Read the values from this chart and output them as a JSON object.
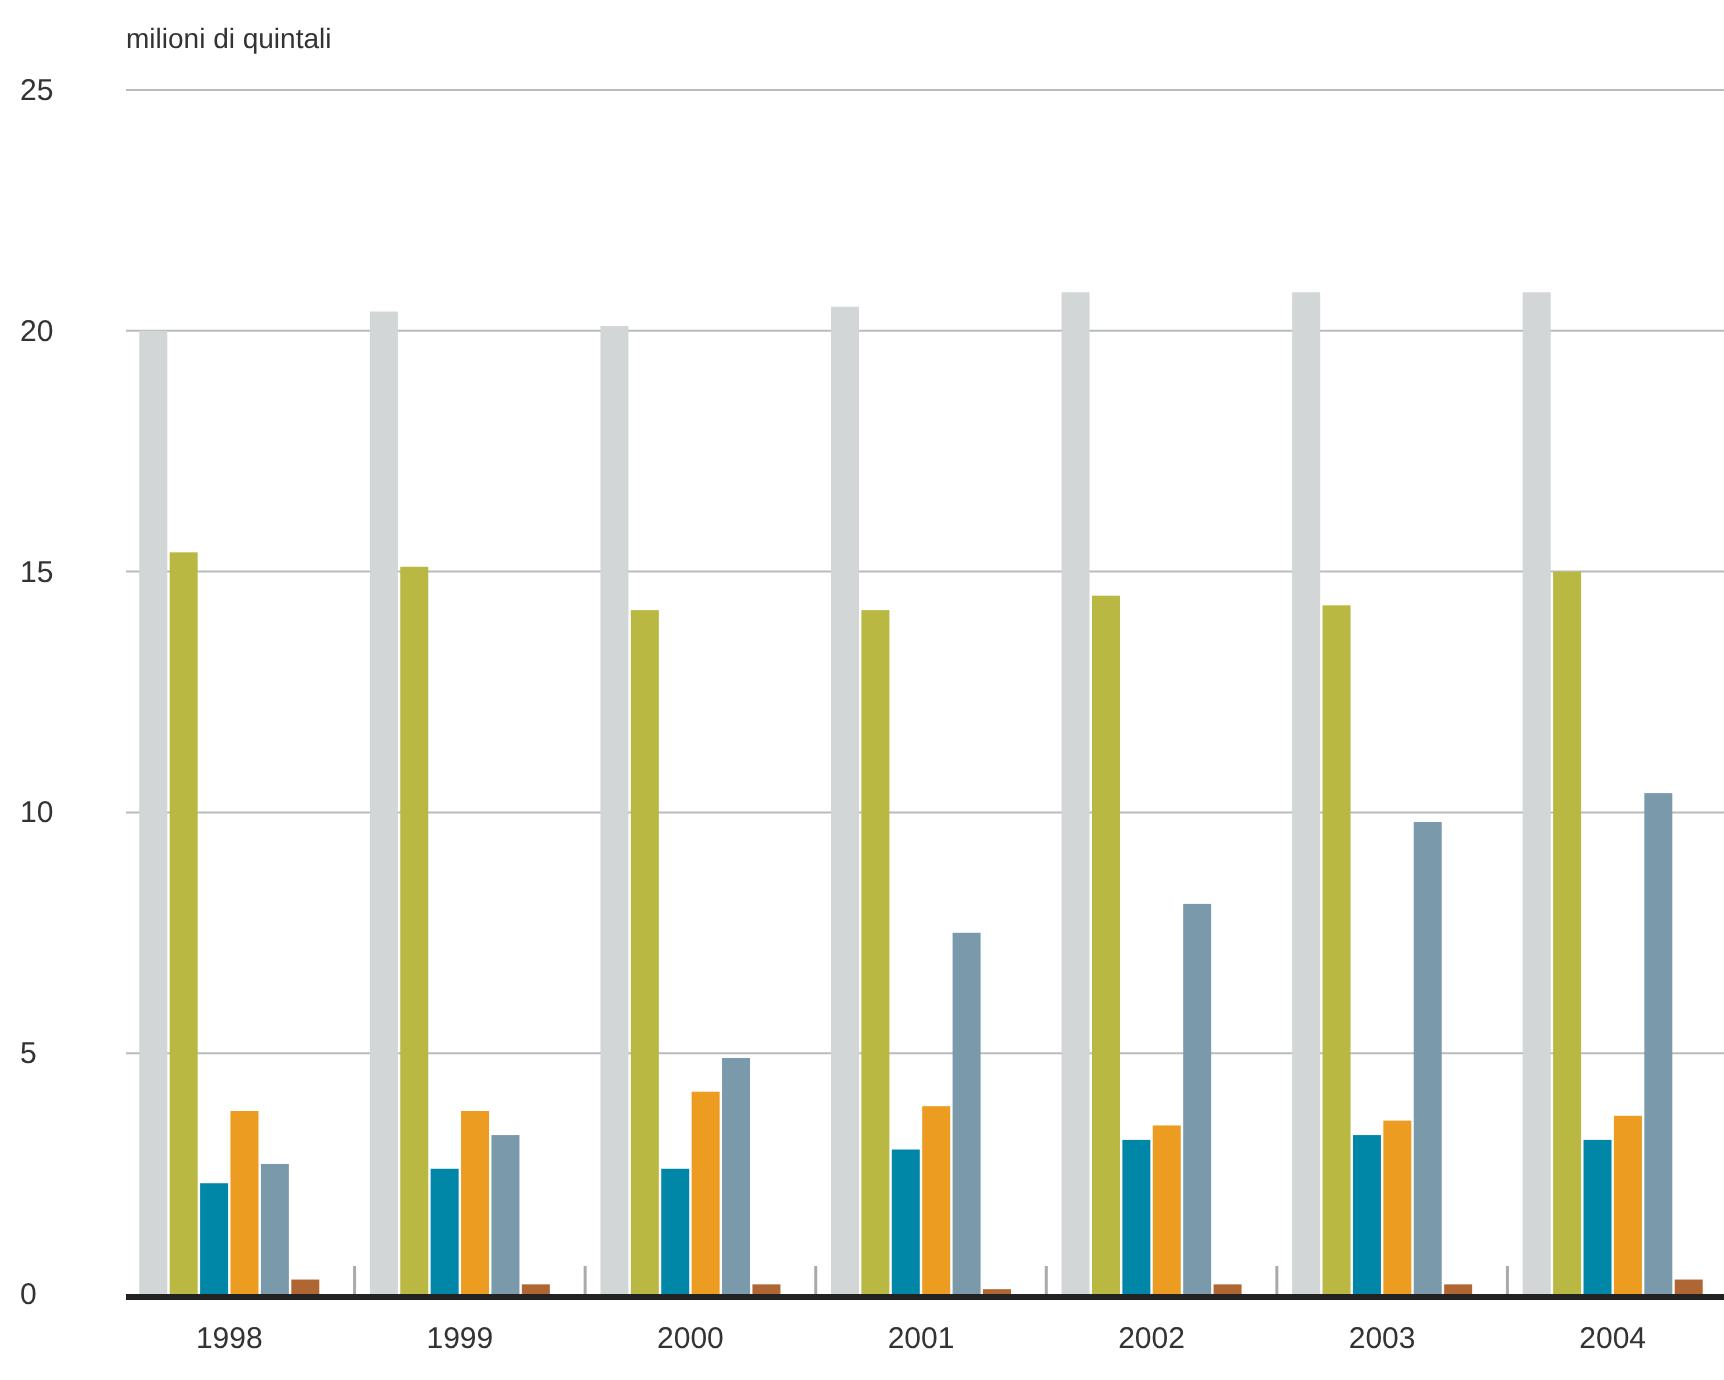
{
  "chart_data": {
    "type": "bar",
    "ylabel": "milioni di quintali",
    "categories": [
      "1998",
      "1999",
      "2000",
      "2001",
      "2002",
      "2003",
      "2004"
    ],
    "series": [
      {
        "color": "#d2d6d7",
        "values": [
          20.0,
          20.4,
          20.1,
          20.5,
          20.8,
          20.8,
          20.8
        ]
      },
      {
        "color": "#b8b842",
        "values": [
          15.4,
          15.1,
          14.2,
          14.2,
          14.5,
          14.3,
          15.0
        ]
      },
      {
        "color": "#0087a8",
        "values": [
          2.3,
          2.6,
          2.6,
          3.0,
          3.2,
          3.3,
          3.2
        ]
      },
      {
        "color": "#eb9c21",
        "values": [
          3.8,
          3.8,
          4.2,
          3.9,
          3.5,
          3.6,
          3.7
        ]
      },
      {
        "color": "#7a9aab",
        "values": [
          2.7,
          3.3,
          4.9,
          7.5,
          8.1,
          9.8,
          10.4
        ]
      },
      {
        "color": "#b06633",
        "values": [
          0.3,
          0.2,
          0.2,
          0.1,
          0.2,
          0.2,
          0.3
        ]
      }
    ],
    "ylim": [
      0,
      25
    ],
    "yticks": [
      0,
      5,
      10,
      15,
      20,
      25
    ],
    "grid": "y"
  }
}
